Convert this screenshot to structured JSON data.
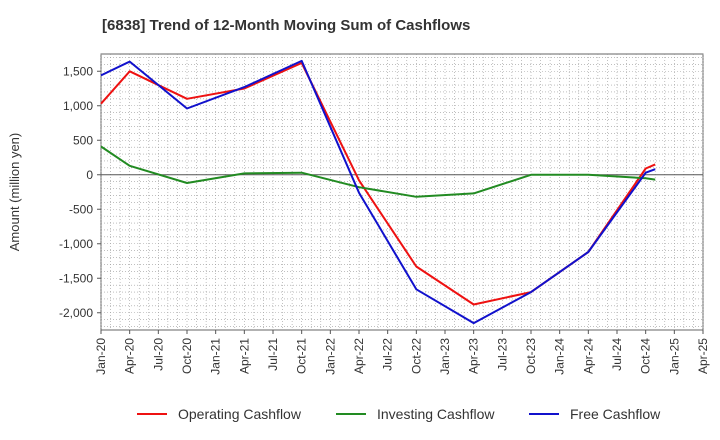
{
  "chart_data": {
    "type": "line",
    "title": "[6838]  Trend of 12-Month Moving Sum of Cashflows",
    "xlabel": "",
    "ylabel": "Amount (million yen)",
    "x_ticks": [
      "Jan-20",
      "Apr-20",
      "Jul-20",
      "Oct-20",
      "Jan-21",
      "Apr-21",
      "Jul-21",
      "Oct-21",
      "Jan-22",
      "Apr-22",
      "Jul-22",
      "Oct-22",
      "Jan-23",
      "Apr-23",
      "Jul-23",
      "Oct-23",
      "Jan-24",
      "Apr-24",
      "Jul-24",
      "Oct-24",
      "Jan-25",
      "Apr-25"
    ],
    "y_ticks": [
      "1,500",
      "1,000",
      "500",
      "0",
      "-500",
      "-1,000",
      "-1,500",
      "-2,000"
    ],
    "y_tick_values": [
      1500,
      1000,
      500,
      0,
      -500,
      -1000,
      -1500,
      -2000
    ],
    "ylim": [
      -2250,
      1750
    ],
    "grid": true,
    "legend_position": "bottom",
    "series": [
      {
        "name": "Operating Cashflow",
        "color": "#ee1111",
        "x": [
          "Jan-20",
          "Apr-20",
          "Oct-20",
          "Apr-21",
          "Oct-21",
          "Apr-22",
          "Oct-22",
          "Apr-23",
          "Oct-23",
          "Apr-24",
          "Oct-24",
          "Nov-24"
        ],
        "y": [
          1030,
          1500,
          1100,
          1250,
          1620,
          -80,
          -1330,
          -1880,
          -1700,
          -1120,
          90,
          150
        ]
      },
      {
        "name": "Investing Cashflow",
        "color": "#228b22",
        "x": [
          "Jan-20",
          "Apr-20",
          "Oct-20",
          "Apr-21",
          "Oct-21",
          "Apr-22",
          "Oct-22",
          "Apr-23",
          "Oct-23",
          "Apr-24",
          "Oct-24",
          "Nov-24"
        ],
        "y": [
          410,
          130,
          -120,
          20,
          30,
          -180,
          -320,
          -270,
          0,
          0,
          -50,
          -70
        ]
      },
      {
        "name": "Free Cashflow",
        "color": "#1111cc",
        "x": [
          "Jan-20",
          "Apr-20",
          "Oct-20",
          "Apr-21",
          "Oct-21",
          "Apr-22",
          "Oct-22",
          "Apr-23",
          "Oct-23",
          "Apr-24",
          "Oct-24",
          "Nov-24"
        ],
        "y": [
          1440,
          1640,
          960,
          1270,
          1650,
          -260,
          -1660,
          -2150,
          -1700,
          -1120,
          30,
          80
        ]
      }
    ]
  }
}
